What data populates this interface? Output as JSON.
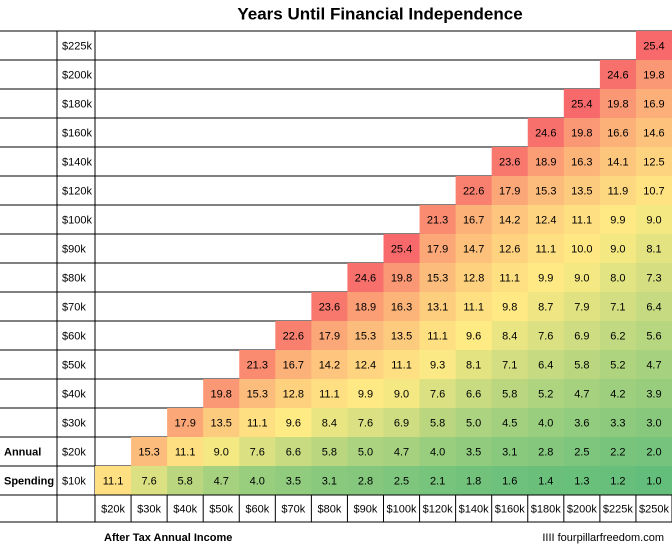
{
  "title": "Years Until Financial Independence",
  "row_axis_label": [
    "Annual",
    "Spending"
  ],
  "column_axis_label": "After Tax Annual Income",
  "credit": "IIII fourpillarfreedom.com",
  "table": {
    "columns": [
      "$20k",
      "$30k",
      "$40k",
      "$50k",
      "$60k",
      "$70k",
      "$80k",
      "$90k",
      "$100k",
      "$120k",
      "$140k",
      "$160k",
      "$180k",
      "$200k",
      "$225k",
      "$250k"
    ],
    "rows": [
      {
        "label": "$225k",
        "cells": [
          null,
          null,
          null,
          null,
          null,
          null,
          null,
          null,
          null,
          null,
          null,
          null,
          null,
          null,
          null,
          "25.4"
        ]
      },
      {
        "label": "$200k",
        "cells": [
          null,
          null,
          null,
          null,
          null,
          null,
          null,
          null,
          null,
          null,
          null,
          null,
          null,
          null,
          "24.6",
          "19.8"
        ]
      },
      {
        "label": "$180k",
        "cells": [
          null,
          null,
          null,
          null,
          null,
          null,
          null,
          null,
          null,
          null,
          null,
          null,
          null,
          "25.4",
          "19.8",
          "16.9"
        ]
      },
      {
        "label": "$160k",
        "cells": [
          null,
          null,
          null,
          null,
          null,
          null,
          null,
          null,
          null,
          null,
          null,
          null,
          "24.6",
          "19.8",
          "16.6",
          "14.6"
        ]
      },
      {
        "label": "$140k",
        "cells": [
          null,
          null,
          null,
          null,
          null,
          null,
          null,
          null,
          null,
          null,
          null,
          "23.6",
          "18.9",
          "16.3",
          "14.1",
          "12.5"
        ]
      },
      {
        "label": "$120k",
        "cells": [
          null,
          null,
          null,
          null,
          null,
          null,
          null,
          null,
          null,
          null,
          "22.6",
          "17.9",
          "15.3",
          "13.5",
          "11.9",
          "10.7"
        ]
      },
      {
        "label": "$100k",
        "cells": [
          null,
          null,
          null,
          null,
          null,
          null,
          null,
          null,
          null,
          "21.3",
          "16.7",
          "14.2",
          "12.4",
          "11.1",
          "9.9",
          "9.0"
        ]
      },
      {
        "label": "$90k",
        "cells": [
          null,
          null,
          null,
          null,
          null,
          null,
          null,
          null,
          "25.4",
          "17.9",
          "14.7",
          "12.6",
          "11.1",
          "10.0",
          "9.0",
          "8.1"
        ]
      },
      {
        "label": "$80k",
        "cells": [
          null,
          null,
          null,
          null,
          null,
          null,
          null,
          "24.6",
          "19.8",
          "15.3",
          "12.8",
          "11.1",
          "9.9",
          "9.0",
          "8.0",
          "7.3"
        ]
      },
      {
        "label": "$70k",
        "cells": [
          null,
          null,
          null,
          null,
          null,
          null,
          "23.6",
          "18.9",
          "16.3",
          "13.1",
          "11.1",
          "9.8",
          "8.7",
          "7.9",
          "7.1",
          "6.4"
        ]
      },
      {
        "label": "$60k",
        "cells": [
          null,
          null,
          null,
          null,
          null,
          "22.6",
          "17.9",
          "15.3",
          "13.5",
          "11.1",
          "9.6",
          "8.4",
          "7.6",
          "6.9",
          "6.2",
          "5.6"
        ]
      },
      {
        "label": "$50k",
        "cells": [
          null,
          null,
          null,
          null,
          "21.3",
          "16.7",
          "14.2",
          "12.4",
          "11.1",
          "9.3",
          "8.1",
          "7.1",
          "6.4",
          "5.8",
          "5.2",
          "4.7"
        ]
      },
      {
        "label": "$40k",
        "cells": [
          null,
          null,
          null,
          "19.8",
          "15.3",
          "12.8",
          "11.1",
          "9.9",
          "9.0",
          "7.6",
          "6.6",
          "5.8",
          "5.2",
          "4.7",
          "4.2",
          "3.9"
        ]
      },
      {
        "label": "$30k",
        "cells": [
          null,
          null,
          "17.9",
          "13.5",
          "11.1",
          "9.6",
          "8.4",
          "7.6",
          "6.9",
          "5.8",
          "5.0",
          "4.5",
          "4.0",
          "3.6",
          "3.3",
          "3.0"
        ]
      },
      {
        "label": "$20k",
        "cells": [
          null,
          "15.3",
          "11.1",
          "9.0",
          "7.6",
          "6.6",
          "5.8",
          "5.0",
          "4.7",
          "4.0",
          "3.5",
          "3.1",
          "2.8",
          "2.5",
          "2.2",
          "2.0"
        ]
      },
      {
        "label": "$10k",
        "cells": [
          "11.1",
          "7.6",
          "5.8",
          "4.7",
          "4.0",
          "3.5",
          "3.1",
          "2.8",
          "2.5",
          "2.1",
          "1.8",
          "1.6",
          "1.4",
          "1.3",
          "1.2",
          "1.0"
        ]
      }
    ]
  }
}
